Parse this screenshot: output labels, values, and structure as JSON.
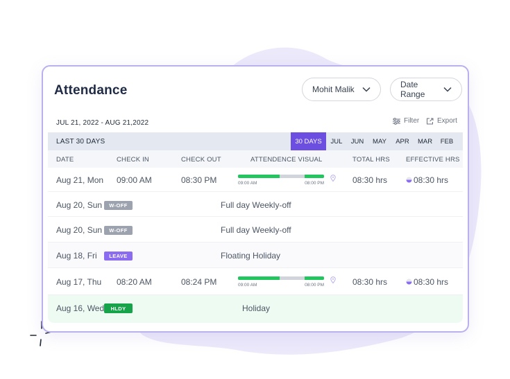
{
  "title": "Attendance",
  "user_select": {
    "value": "Mohit Malik"
  },
  "range_select": {
    "value": "Date Range"
  },
  "period": "JUL 21, 2022 - AUG 21,2022",
  "tools": {
    "filter": "Filter",
    "export": "Export"
  },
  "range_bar": {
    "label": "LAST 30 DAYS",
    "tabs": [
      "30 DAYS",
      "JUL",
      "JUN",
      "MAY",
      "APR",
      "MAR",
      "FEB"
    ],
    "active_tab": "30 DAYS"
  },
  "columns": {
    "date": "DATE",
    "check_in": "CHECK IN",
    "check_out": "CHECK OUT",
    "visual": "ATTENDENCE VISUAL",
    "total": "TOTAL HRS",
    "effective": "EFFECTIVE HRS"
  },
  "rows": [
    {
      "date": "Aug 21, Mon",
      "check_in": "09:00 AM",
      "check_out": "08:30 PM",
      "vis_start": "09:00 AM",
      "vis_end": "08:00 PM",
      "total": "08:30 hrs",
      "effective": "08:30 hrs"
    },
    {
      "date": "Aug 20, Sun",
      "badge": "W-OFF",
      "note": "Full day Weekly-off"
    },
    {
      "date": "Aug 20, Sun",
      "badge": "W-OFF",
      "note": "Full day Weekly-off"
    },
    {
      "date": "Aug 18, Fri",
      "badge": "LEAVE",
      "note": "Floating Holiday"
    },
    {
      "date": "Aug 17, Thu",
      "check_in": "08:20 AM",
      "check_out": "08:24 PM",
      "vis_start": "09:00 AM",
      "vis_end": "08:00 PM",
      "total": "08:30 hrs",
      "effective": "08:30 hrs"
    },
    {
      "date": "Aug 16, Wed",
      "badge": "HLDY",
      "note": "Holiday"
    }
  ],
  "colors": {
    "accent": "#6c4ee0",
    "present_bar": "#22c55e",
    "gap_bar": "#d1d5db",
    "woff": "#9ca3af",
    "leave": "#8b6cf0",
    "holiday": "#16a34a",
    "card_border": "#b9b0ee"
  }
}
